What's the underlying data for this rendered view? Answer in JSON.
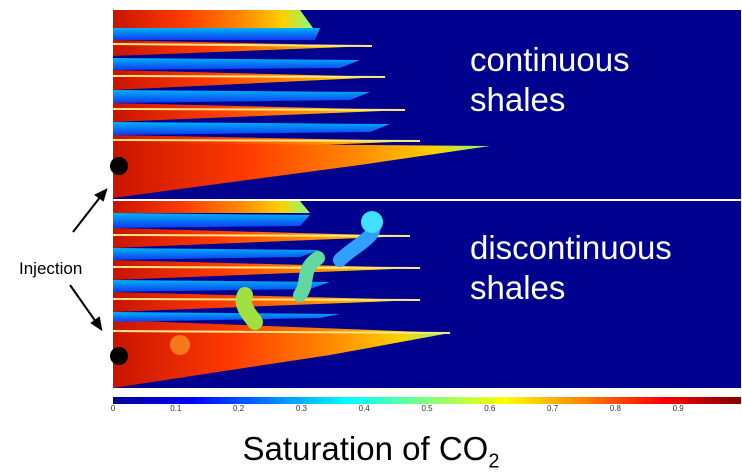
{
  "panels": {
    "top_label_line1": "continuous",
    "top_label_line2": "shales",
    "bottom_label_line1": "discontinuous",
    "bottom_label_line2": "shales"
  },
  "injection": {
    "label": "Injection"
  },
  "colorbar": {
    "ticks": [
      "0",
      "0.1",
      "0.2",
      "0.3",
      "0.4",
      "0.5",
      "0.6",
      "0.7",
      "0.8",
      "0.9"
    ],
    "range": [
      0,
      1
    ],
    "colormap": "jet",
    "title_main": "Saturation of CO",
    "title_sub": "2"
  },
  "colors": {
    "background": "#00008f",
    "saturated": "#e62e00",
    "edge": "#00b4ff"
  }
}
